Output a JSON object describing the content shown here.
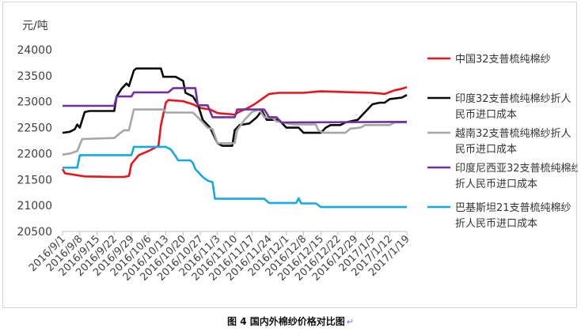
{
  "caption": "图 4 国内外棉纱价格对比图",
  "caption_mark": "↵",
  "chart_data": {
    "type": "line",
    "unit_label": "元/吨",
    "ylim": [
      20500,
      24000
    ],
    "yticks": [
      20500,
      21000,
      21500,
      22000,
      22500,
      23000,
      23500,
      24000
    ],
    "x_range": [
      "2016/9/1",
      "2017/1/19"
    ],
    "x_ticks": [
      "2016/9/1",
      "2016/9/8",
      "2016/9/15",
      "2016/9/22",
      "2016/9/29",
      "2016/10/6",
      "2016/10/13",
      "2016/10/20",
      "2016/10/27",
      "2016/11/3",
      "2016/11/10",
      "2016/11/17",
      "2016/11/24",
      "2016/12/1",
      "2016/12/8",
      "2016/12/15",
      "2016/12/22",
      "2016/12/29",
      "2017/1/5",
      "2017/1/12",
      "2017/1/19"
    ],
    "grid": false,
    "legend_position": "right",
    "series": [
      {
        "name": "中国32支普梳纯棉纱",
        "color": "#e8141a",
        "points": [
          [
            "2016/9/1",
            21700
          ],
          [
            "2016/9/2",
            21620
          ],
          [
            "2016/9/6",
            21590
          ],
          [
            "2016/9/10",
            21560
          ],
          [
            "2016/9/22",
            21550
          ],
          [
            "2016/9/26",
            21550
          ],
          [
            "2016/9/28",
            21570
          ],
          [
            "2016/9/29",
            21800
          ],
          [
            "2016/10/2",
            21970
          ],
          [
            "2016/10/6",
            22050
          ],
          [
            "2016/10/10",
            22150
          ],
          [
            "2016/10/11",
            22550
          ],
          [
            "2016/10/13",
            22980
          ],
          [
            "2016/10/14",
            23030
          ],
          [
            "2016/10/20",
            23010
          ],
          [
            "2016/10/24",
            22950
          ],
          [
            "2016/10/27",
            22880
          ],
          [
            "2016/10/31",
            22850
          ],
          [
            "2016/11/3",
            22780
          ],
          [
            "2016/11/8",
            22760
          ],
          [
            "2016/11/10",
            22750
          ],
          [
            "2016/11/12",
            22810
          ],
          [
            "2016/11/15",
            22870
          ],
          [
            "2016/11/18",
            22950
          ],
          [
            "2016/11/21",
            23050
          ],
          [
            "2016/11/24",
            23150
          ],
          [
            "2016/11/28",
            23170
          ],
          [
            "2016/12/8",
            23170
          ],
          [
            "2016/12/15",
            23200
          ],
          [
            "2016/12/29",
            23180
          ],
          [
            "2017/1/5",
            23170
          ],
          [
            "2017/1/10",
            23150
          ],
          [
            "2017/1/14",
            23220
          ],
          [
            "2017/1/17",
            23250
          ],
          [
            "2017/1/19",
            23280
          ]
        ]
      },
      {
        "name": "印度32支普梳纯棉纱折人民币进口成本",
        "color": "#0a0a0a",
        "points": [
          [
            "2016/9/1",
            22400
          ],
          [
            "2016/9/4",
            22420
          ],
          [
            "2016/9/6",
            22470
          ],
          [
            "2016/9/7",
            22560
          ],
          [
            "2016/9/8",
            22500
          ],
          [
            "2016/9/9",
            22650
          ],
          [
            "2016/9/10",
            22800
          ],
          [
            "2016/9/12",
            22820
          ],
          [
            "2016/9/22",
            22820
          ],
          [
            "2016/9/23",
            23100
          ],
          [
            "2016/9/25",
            23250
          ],
          [
            "2016/9/27",
            23350
          ],
          [
            "2016/9/28",
            23300
          ],
          [
            "2016/9/30",
            23600
          ],
          [
            "2016/10/1",
            23640
          ],
          [
            "2016/10/11",
            23640
          ],
          [
            "2016/10/12",
            23480
          ],
          [
            "2016/10/17",
            23480
          ],
          [
            "2016/10/20",
            23400
          ],
          [
            "2016/10/21",
            23170
          ],
          [
            "2016/10/24",
            23100
          ],
          [
            "2016/10/26",
            22950
          ],
          [
            "2016/10/28",
            22650
          ],
          [
            "2016/10/31",
            22500
          ],
          [
            "2016/11/3",
            22200
          ],
          [
            "2016/11/5",
            22150
          ],
          [
            "2016/11/9",
            22150
          ],
          [
            "2016/11/10",
            22450
          ],
          [
            "2016/11/12",
            22550
          ],
          [
            "2016/11/16",
            22580
          ],
          [
            "2016/11/19",
            22700
          ],
          [
            "2016/11/21",
            22830
          ],
          [
            "2016/11/23",
            22650
          ],
          [
            "2016/11/28",
            22650
          ],
          [
            "2016/11/30",
            22550
          ],
          [
            "2016/12/1",
            22500
          ],
          [
            "2016/12/6",
            22500
          ],
          [
            "2016/12/8",
            22400
          ],
          [
            "2016/12/15",
            22400
          ],
          [
            "2016/12/17",
            22500
          ],
          [
            "2016/12/19",
            22550
          ],
          [
            "2016/12/23",
            22550
          ],
          [
            "2016/12/25",
            22600
          ],
          [
            "2016/12/30",
            22650
          ],
          [
            "2017/1/1",
            22750
          ],
          [
            "2017/1/3",
            22850
          ],
          [
            "2017/1/5",
            22950
          ],
          [
            "2017/1/8",
            22980
          ],
          [
            "2017/1/10",
            22980
          ],
          [
            "2017/1/12",
            23050
          ],
          [
            "2017/1/17",
            23080
          ],
          [
            "2017/1/19",
            23130
          ]
        ]
      },
      {
        "name": "越南32支普梳纯棉纱折人民币进口成本",
        "color": "#a6a6a6",
        "points": [
          [
            "2016/9/1",
            21980
          ],
          [
            "2016/9/4",
            22000
          ],
          [
            "2016/9/7",
            22050
          ],
          [
            "2016/9/9",
            22280
          ],
          [
            "2016/9/22",
            22300
          ],
          [
            "2016/9/24",
            22380
          ],
          [
            "2016/9/26",
            22450
          ],
          [
            "2016/9/28",
            22450
          ],
          [
            "2016/9/29",
            22650
          ],
          [
            "2016/9/30",
            22850
          ],
          [
            "2016/10/12",
            22850
          ],
          [
            "2016/10/13",
            22790
          ],
          [
            "2016/10/24",
            22790
          ],
          [
            "2016/10/26",
            22700
          ],
          [
            "2016/10/30",
            22500
          ],
          [
            "2016/11/1",
            22470
          ],
          [
            "2016/11/3",
            22200
          ],
          [
            "2016/11/10",
            22200
          ],
          [
            "2016/11/11",
            22450
          ],
          [
            "2016/11/14",
            22650
          ],
          [
            "2016/11/17",
            22800
          ],
          [
            "2016/11/20",
            22850
          ],
          [
            "2016/11/22",
            22700
          ],
          [
            "2016/11/25",
            22700
          ],
          [
            "2016/11/27",
            22620
          ],
          [
            "2016/12/4",
            22560
          ],
          [
            "2016/12/13",
            22560
          ],
          [
            "2016/12/14",
            22450
          ],
          [
            "2016/12/16",
            22400
          ],
          [
            "2016/12/25",
            22400
          ],
          [
            "2016/12/27",
            22480
          ],
          [
            "2016/12/31",
            22500
          ],
          [
            "2017/1/2",
            22550
          ],
          [
            "2017/1/12",
            22550
          ],
          [
            "2017/1/14",
            22600
          ],
          [
            "2017/1/19",
            22600
          ]
        ]
      },
      {
        "name": "印度尼西亚32支普梳纯棉纱折人民币进口成本",
        "color": "#7030a0",
        "points": [
          [
            "2016/9/1",
            22920
          ],
          [
            "2016/9/22",
            22920
          ],
          [
            "2016/9/23",
            23100
          ],
          [
            "2016/9/29",
            23100
          ],
          [
            "2016/9/30",
            23180
          ],
          [
            "2016/10/14",
            23180
          ],
          [
            "2016/10/16",
            23260
          ],
          [
            "2016/10/25",
            23260
          ],
          [
            "2016/10/26",
            22930
          ],
          [
            "2016/10/30",
            22930
          ],
          [
            "2016/11/1",
            22700
          ],
          [
            "2016/11/10",
            22700
          ],
          [
            "2016/11/11",
            22850
          ],
          [
            "2016/11/22",
            22850
          ],
          [
            "2016/11/24",
            22700
          ],
          [
            "2016/11/27",
            22700
          ],
          [
            "2016/11/29",
            22600
          ],
          [
            "2017/1/19",
            22610
          ]
        ]
      },
      {
        "name": "巴基斯坦21支普梳纯棉纱折人民币进口成本",
        "color": "#16a8e0",
        "points": [
          [
            "2016/9/1",
            21730
          ],
          [
            "2016/9/7",
            21730
          ],
          [
            "2016/9/8",
            21970
          ],
          [
            "2016/9/29",
            21970
          ],
          [
            "2016/9/30",
            22130
          ],
          [
            "2016/10/13",
            22130
          ],
          [
            "2016/10/15",
            22080
          ],
          [
            "2016/10/17",
            21950
          ],
          [
            "2016/10/18",
            21870
          ],
          [
            "2016/10/23",
            21870
          ],
          [
            "2016/10/24",
            21820
          ],
          [
            "2016/10/25",
            21700
          ],
          [
            "2016/10/28",
            21550
          ],
          [
            "2016/10/30",
            21480
          ],
          [
            "2016/11/1",
            21450
          ],
          [
            "2016/11/2",
            21130
          ],
          [
            "2016/11/22",
            21130
          ],
          [
            "2016/11/24",
            21050
          ],
          [
            "2016/12/5",
            21050
          ],
          [
            "2016/12/6",
            21140
          ],
          [
            "2016/12/7",
            21040
          ],
          [
            "2016/12/13",
            21040
          ],
          [
            "2016/12/15",
            20970
          ],
          [
            "2017/1/19",
            20970
          ]
        ]
      }
    ]
  }
}
